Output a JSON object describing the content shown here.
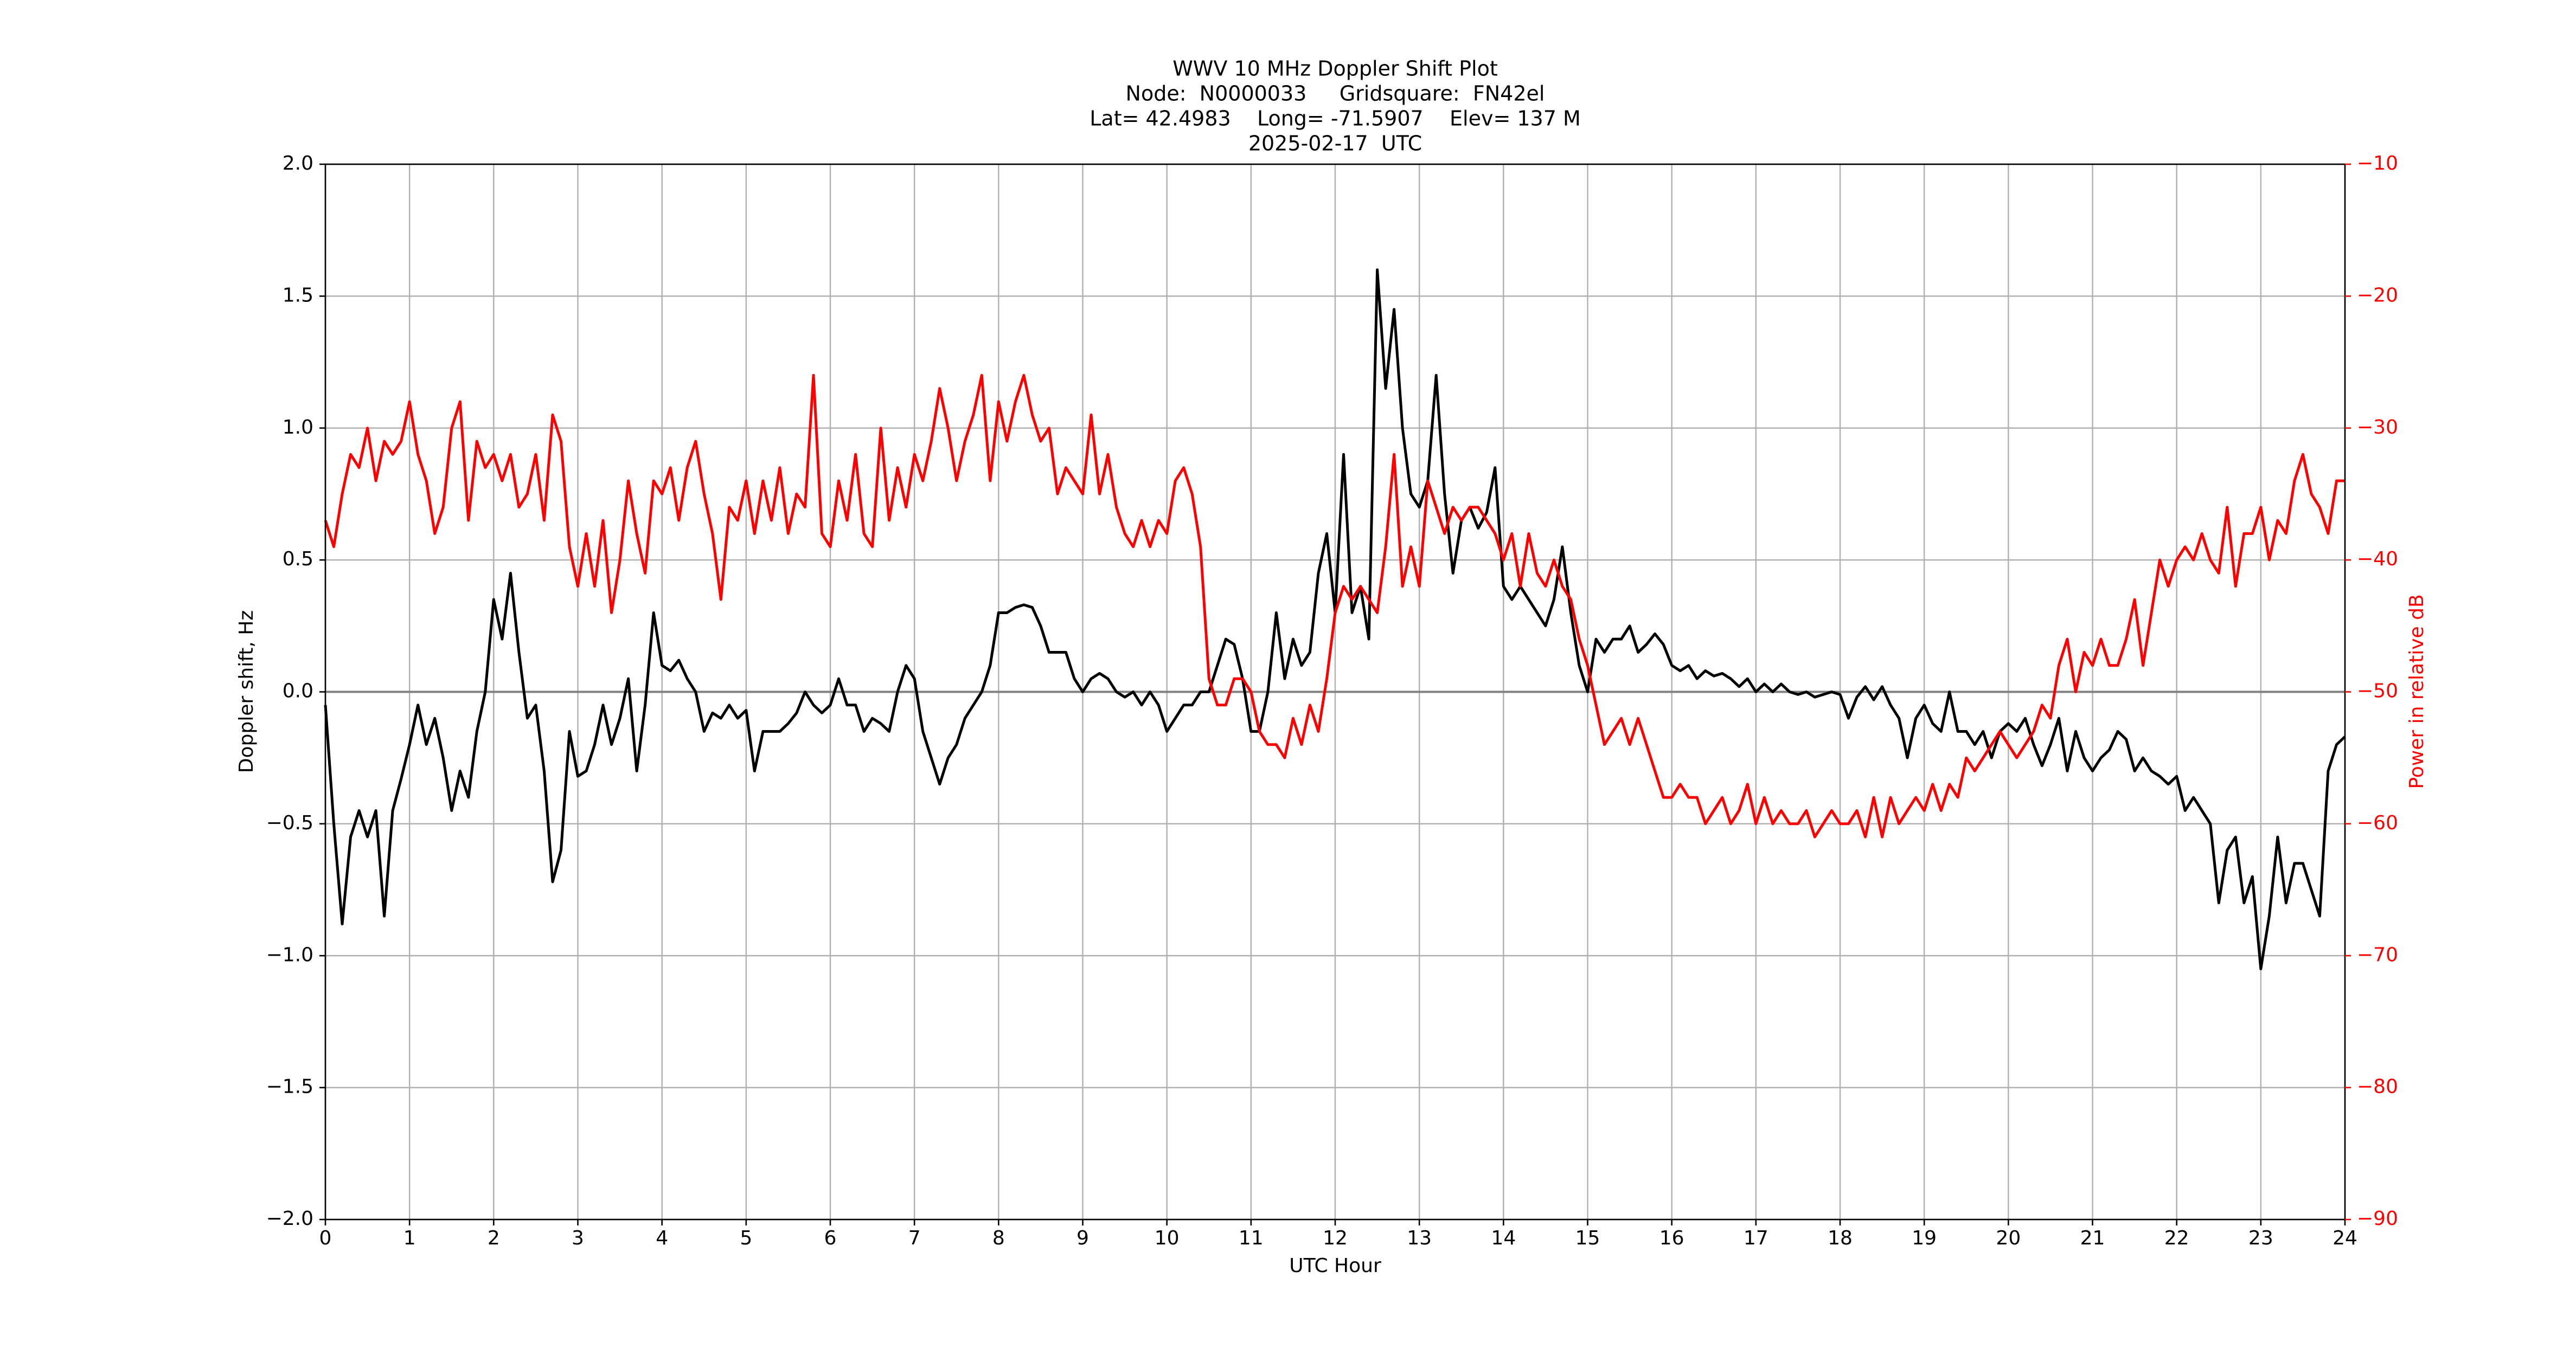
{
  "chart_data": {
    "type": "line",
    "title": "WWV 10 MHz Doppler Shift Plot",
    "subtitle": [
      "Node:  N0000033     Gridsquare:  FN42el",
      "Lat= 42.4983    Long= -71.5907    Elev= 137 M",
      "2025-02-17  UTC"
    ],
    "xlabel": "UTC Hour",
    "ylabel": "Doppler shift, Hz",
    "y2label": "Power in relative dB",
    "xlim": [
      0,
      24
    ],
    "xticks": [
      0,
      1,
      2,
      3,
      4,
      5,
      6,
      7,
      8,
      9,
      10,
      11,
      12,
      13,
      14,
      15,
      16,
      17,
      18,
      19,
      20,
      21,
      22,
      23,
      24
    ],
    "ylim": [
      -2,
      2
    ],
    "yticks": [
      {
        "value": -2,
        "label": "−2.0"
      },
      {
        "value": -1.5,
        "label": "−1.5"
      },
      {
        "value": -1,
        "label": "−1.0"
      },
      {
        "value": -0.5,
        "label": "−0.5"
      },
      {
        "value": 0,
        "label": "0.0"
      },
      0.5,
      {
        "value": 1,
        "label": "1.0"
      },
      1.5,
      {
        "value": 2,
        "label": "2.0"
      }
    ],
    "y2lim": [
      -90,
      -10
    ],
    "y2ticks": [
      {
        "value": -90,
        "label": "−90"
      },
      {
        "value": -80,
        "label": "−80"
      },
      {
        "value": -70,
        "label": "−70"
      },
      {
        "value": -60,
        "label": "−60"
      },
      {
        "value": -50,
        "label": "−50"
      },
      {
        "value": -40,
        "label": "−40"
      },
      {
        "value": -30,
        "label": "−30"
      },
      {
        "value": -20,
        "label": "−20"
      },
      {
        "value": -10,
        "label": "−10"
      }
    ],
    "grid": true,
    "x": [
      0,
      0.1,
      0.2,
      0.3,
      0.4,
      0.5,
      0.6,
      0.7,
      0.8,
      0.9,
      1,
      1.1,
      1.2,
      1.3,
      1.4,
      1.5,
      1.6,
      1.7,
      1.8,
      1.9,
      2,
      2.1,
      2.2,
      2.3,
      2.4,
      2.5,
      2.6,
      2.7,
      2.8,
      2.9,
      3,
      3.1,
      3.2,
      3.3,
      3.4,
      3.5,
      3.6,
      3.7,
      3.8,
      3.9,
      4,
      4.1,
      4.2,
      4.3,
      4.4,
      4.5,
      4.6,
      4.7,
      4.8,
      4.9,
      5,
      5.1,
      5.2,
      5.3,
      5.4,
      5.5,
      5.6,
      5.7,
      5.8,
      5.9,
      6,
      6.1,
      6.2,
      6.3,
      6.4,
      6.5,
      6.6,
      6.7,
      6.8,
      6.9,
      7,
      7.1,
      7.2,
      7.3,
      7.4,
      7.5,
      7.6,
      7.7,
      7.8,
      7.9,
      8,
      8.1,
      8.2,
      8.3,
      8.4,
      8.5,
      8.6,
      8.7,
      8.8,
      8.9,
      9,
      9.1,
      9.2,
      9.3,
      9.4,
      9.5,
      9.6,
      9.7,
      9.8,
      9.9,
      10,
      10.1,
      10.2,
      10.3,
      10.4,
      10.5,
      10.6,
      10.7,
      10.8,
      10.9,
      11,
      11.1,
      11.2,
      11.3,
      11.4,
      11.5,
      11.6,
      11.7,
      11.8,
      11.9,
      12,
      12.1,
      12.2,
      12.3,
      12.4,
      12.5,
      12.6,
      12.7,
      12.8,
      12.9,
      13,
      13.1,
      13.2,
      13.3,
      13.4,
      13.5,
      13.6,
      13.7,
      13.8,
      13.9,
      14,
      14.1,
      14.2,
      14.3,
      14.4,
      14.5,
      14.6,
      14.7,
      14.8,
      14.9,
      15,
      15.1,
      15.2,
      15.3,
      15.4,
      15.5,
      15.6,
      15.7,
      15.8,
      15.9,
      16,
      16.1,
      16.2,
      16.3,
      16.4,
      16.5,
      16.6,
      16.7,
      16.8,
      16.9,
      17,
      17.1,
      17.2,
      17.3,
      17.4,
      17.5,
      17.6,
      17.7,
      17.8,
      17.9,
      18,
      18.1,
      18.2,
      18.3,
      18.4,
      18.5,
      18.6,
      18.7,
      18.8,
      18.9,
      19,
      19.1,
      19.2,
      19.3,
      19.4,
      19.5,
      19.6,
      19.7,
      19.8,
      19.9,
      20,
      20.1,
      20.2,
      20.3,
      20.4,
      20.5,
      20.6,
      20.7,
      20.8,
      20.9,
      21,
      21.1,
      21.2,
      21.3,
      21.4,
      21.5,
      21.6,
      21.7,
      21.8,
      21.9,
      22,
      22.1,
      22.2,
      22.3,
      22.4,
      22.5,
      22.6,
      22.7,
      22.8,
      22.9,
      23,
      23.1,
      23.2,
      23.3,
      23.4,
      23.5,
      23.6,
      23.7,
      23.8,
      23.9,
      24
    ],
    "series": [
      {
        "color": "#000000",
        "values": [
          -0.05,
          -0.5,
          -0.88,
          -0.55,
          -0.45,
          -0.55,
          -0.45,
          -0.85,
          -0.45,
          -0.33,
          -0.2,
          -0.05,
          -0.2,
          -0.1,
          -0.25,
          -0.45,
          -0.3,
          -0.4,
          -0.15,
          0,
          0.35,
          0.2,
          0.45,
          0.15,
          -0.1,
          -0.05,
          -0.3,
          -0.72,
          -0.6,
          -0.15,
          -0.32,
          -0.3,
          -0.2,
          -0.05,
          -0.2,
          -0.1,
          0.05,
          -0.3,
          -0.05,
          0.3,
          0.1,
          0.08,
          0.12,
          0.05,
          0,
          -0.15,
          -0.08,
          -0.1,
          -0.05,
          -0.1,
          -0.07,
          -0.3,
          -0.15,
          -0.15,
          -0.15,
          -0.12,
          -0.08,
          0,
          -0.05,
          -0.08,
          -0.05,
          0.05,
          -0.05,
          -0.05,
          -0.15,
          -0.1,
          -0.12,
          -0.15,
          0,
          0.1,
          0.05,
          -0.15,
          -0.25,
          -0.35,
          -0.25,
          -0.2,
          -0.1,
          -0.05,
          0,
          0.1,
          0.3,
          0.3,
          0.32,
          0.33,
          0.32,
          0.25,
          0.15,
          0.15,
          0.15,
          0.05,
          0,
          0.05,
          0.07,
          0.05,
          0,
          -0.02,
          0,
          -0.05,
          0,
          -0.05,
          -0.15,
          -0.1,
          -0.05,
          -0.05,
          0,
          0,
          0.1,
          0.2,
          0.18,
          0.05,
          -0.15,
          -0.15,
          0,
          0.3,
          0.05,
          0.2,
          0.1,
          0.15,
          0.45,
          0.6,
          0.3,
          0.9,
          0.3,
          0.4,
          0.2,
          1.6,
          1.15,
          1.45,
          1,
          0.75,
          0.7,
          0.8,
          1.2,
          0.75,
          0.45,
          0.65,
          0.7,
          0.62,
          0.68,
          0.85,
          0.4,
          0.35,
          0.4,
          0.35,
          0.3,
          0.25,
          0.35,
          0.55,
          0.3,
          0.1,
          0,
          0.2,
          0.15,
          0.2,
          0.2,
          0.25,
          0.15,
          0.18,
          0.22,
          0.18,
          0.1,
          0.08,
          0.1,
          0.05,
          0.08,
          0.06,
          0.07,
          0.05,
          0.02,
          0.05,
          0,
          0.03,
          0,
          0.03,
          0,
          -0.01,
          0,
          -0.02,
          -0.01,
          0,
          -0.01,
          -0.1,
          -0.02,
          0.02,
          -0.03,
          0.02,
          -0.05,
          -0.1,
          -0.25,
          -0.1,
          -0.05,
          -0.12,
          -0.15,
          0,
          -0.15,
          -0.15,
          -0.2,
          -0.15,
          -0.25,
          -0.15,
          -0.12,
          -0.15,
          -0.1,
          -0.2,
          -0.28,
          -0.2,
          -0.1,
          -0.3,
          -0.15,
          -0.25,
          -0.3,
          -0.25,
          -0.22,
          -0.15,
          -0.18,
          -0.3,
          -0.25,
          -0.3,
          -0.32,
          -0.35,
          -0.32,
          -0.45,
          -0.4,
          -0.45,
          -0.5,
          -0.8,
          -0.6,
          -0.55,
          -0.8,
          -0.7,
          -1.05,
          -0.85,
          -0.55,
          -0.8,
          -0.65,
          -0.65,
          -0.75,
          -0.85,
          -0.3,
          -0.2,
          -0.17
        ]
      },
      {
        "color": "#ff0000",
        "axis": "y2",
        "values": [
          -37,
          -39,
          -35,
          -32,
          -33,
          -30,
          -34,
          -31,
          -32,
          -31,
          -28,
          -32,
          -34,
          -38,
          -36,
          -30,
          -28,
          -37,
          -31,
          -33,
          -32,
          -34,
          -32,
          -36,
          -35,
          -32,
          -37,
          -29,
          -31,
          -39,
          -42,
          -38,
          -42,
          -37,
          -44,
          -40,
          -34,
          -38,
          -41,
          -34,
          -35,
          -33,
          -37,
          -33,
          -31,
          -35,
          -38,
          -43,
          -36,
          -37,
          -34,
          -38,
          -34,
          -37,
          -33,
          -38,
          -35,
          -36,
          -26,
          -38,
          -39,
          -34,
          -37,
          -32,
          -38,
          -39,
          -30,
          -37,
          -33,
          -36,
          -32,
          -34,
          -31,
          -27,
          -30,
          -34,
          -31,
          -29,
          -26,
          -34,
          -28,
          -31,
          -28,
          -26,
          -29,
          -31,
          -30,
          -35,
          -33,
          -34,
          -35,
          -29,
          -35,
          -32,
          -36,
          -38,
          -39,
          -37,
          -39,
          -37,
          -38,
          -34,
          -33,
          -35,
          -39,
          -49,
          -51,
          -51,
          -49,
          -49,
          -50,
          -53,
          -54,
          -54,
          -55,
          -52,
          -54,
          -51,
          -53,
          -49,
          -44,
          -42,
          -43,
          -42,
          -43,
          -44,
          -39,
          -32,
          -42,
          -39,
          -42,
          -34,
          -36,
          -38,
          -36,
          -37,
          -36,
          -36,
          -37,
          -38,
          -40,
          -38,
          -42,
          -38,
          -41,
          -42,
          -40,
          -42,
          -43,
          -46,
          -48,
          -51,
          -54,
          -53,
          -52,
          -54,
          -52,
          -54,
          -56,
          -58,
          -58,
          -57,
          -58,
          -58,
          -60,
          -59,
          -58,
          -60,
          -59,
          -57,
          -60,
          -58,
          -60,
          -59,
          -60,
          -60,
          -59,
          -61,
          -60,
          -59,
          -60,
          -60,
          -59,
          -61,
          -58,
          -61,
          -58,
          -60,
          -59,
          -58,
          -59,
          -57,
          -59,
          -57,
          -58,
          -55,
          -56,
          -55,
          -54,
          -53,
          -54,
          -55,
          -54,
          -53,
          -51,
          -52,
          -48,
          -46,
          -50,
          -47,
          -48,
          -46,
          -48,
          -48,
          -46,
          -43,
          -48,
          -44,
          -40,
          -42,
          -40,
          -39,
          -40,
          -38,
          -40,
          -41,
          -36,
          -42,
          -38,
          -38,
          -36,
          -40,
          -37,
          -38,
          -34,
          -32,
          -35,
          -36,
          -38,
          -34,
          -34
        ]
      }
    ]
  }
}
